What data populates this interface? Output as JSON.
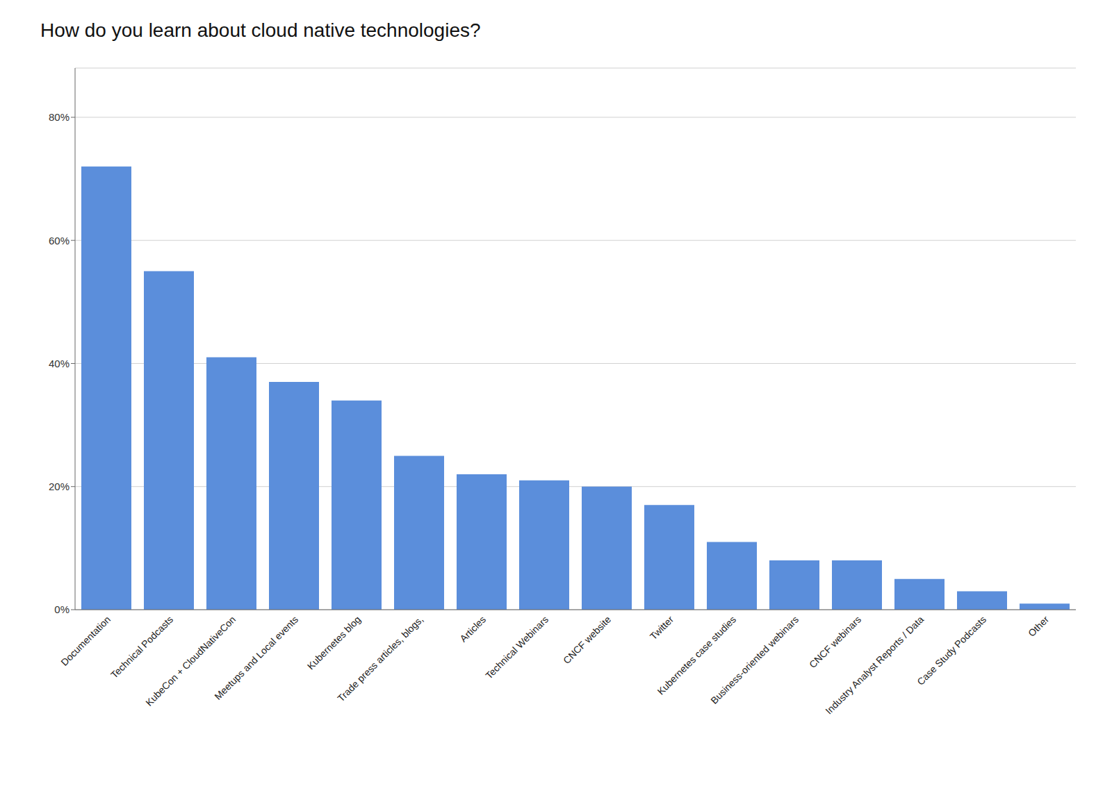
{
  "chart_data": {
    "type": "bar",
    "title": "How do you learn about cloud native technologies?",
    "categories": [
      "Documentation",
      "Technical Podcasts",
      "KubeCon + CloudNativeCon",
      "Meetups and Local events",
      "Kubernetes blog",
      "Trade press articles, blogs,",
      "Articles",
      "Technical Webinars",
      "CNCF website",
      "Twitter",
      "Kubernetes case studies",
      "Business-oriented webinars",
      "CNCF webinars",
      "Industry Analyst Reports / Data",
      "Case Study Podcasts",
      "Other"
    ],
    "values": [
      72,
      55,
      41,
      37,
      34,
      25,
      22,
      21,
      20,
      17,
      11,
      8,
      8,
      5,
      3,
      1
    ],
    "color": "#5b8edb",
    "ylim": [
      0,
      88
    ],
    "yticks": [
      {
        "value": 0,
        "label": "0%"
      },
      {
        "value": 20,
        "label": "20%"
      },
      {
        "value": 40,
        "label": "40%"
      },
      {
        "value": 60,
        "label": "60%"
      },
      {
        "value": 80,
        "label": "80%"
      }
    ],
    "grid": true
  }
}
